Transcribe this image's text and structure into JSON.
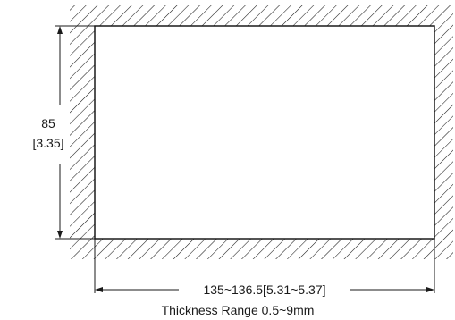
{
  "drawing": {
    "height_value": "85",
    "height_inch": "[3.35]",
    "width_dimension": "135~136.5[5.31~5.37]",
    "thickness_note": "Thickness Range 0.5~9mm"
  },
  "colors": {
    "line": "#1a1a1a",
    "background": "#ffffff"
  }
}
